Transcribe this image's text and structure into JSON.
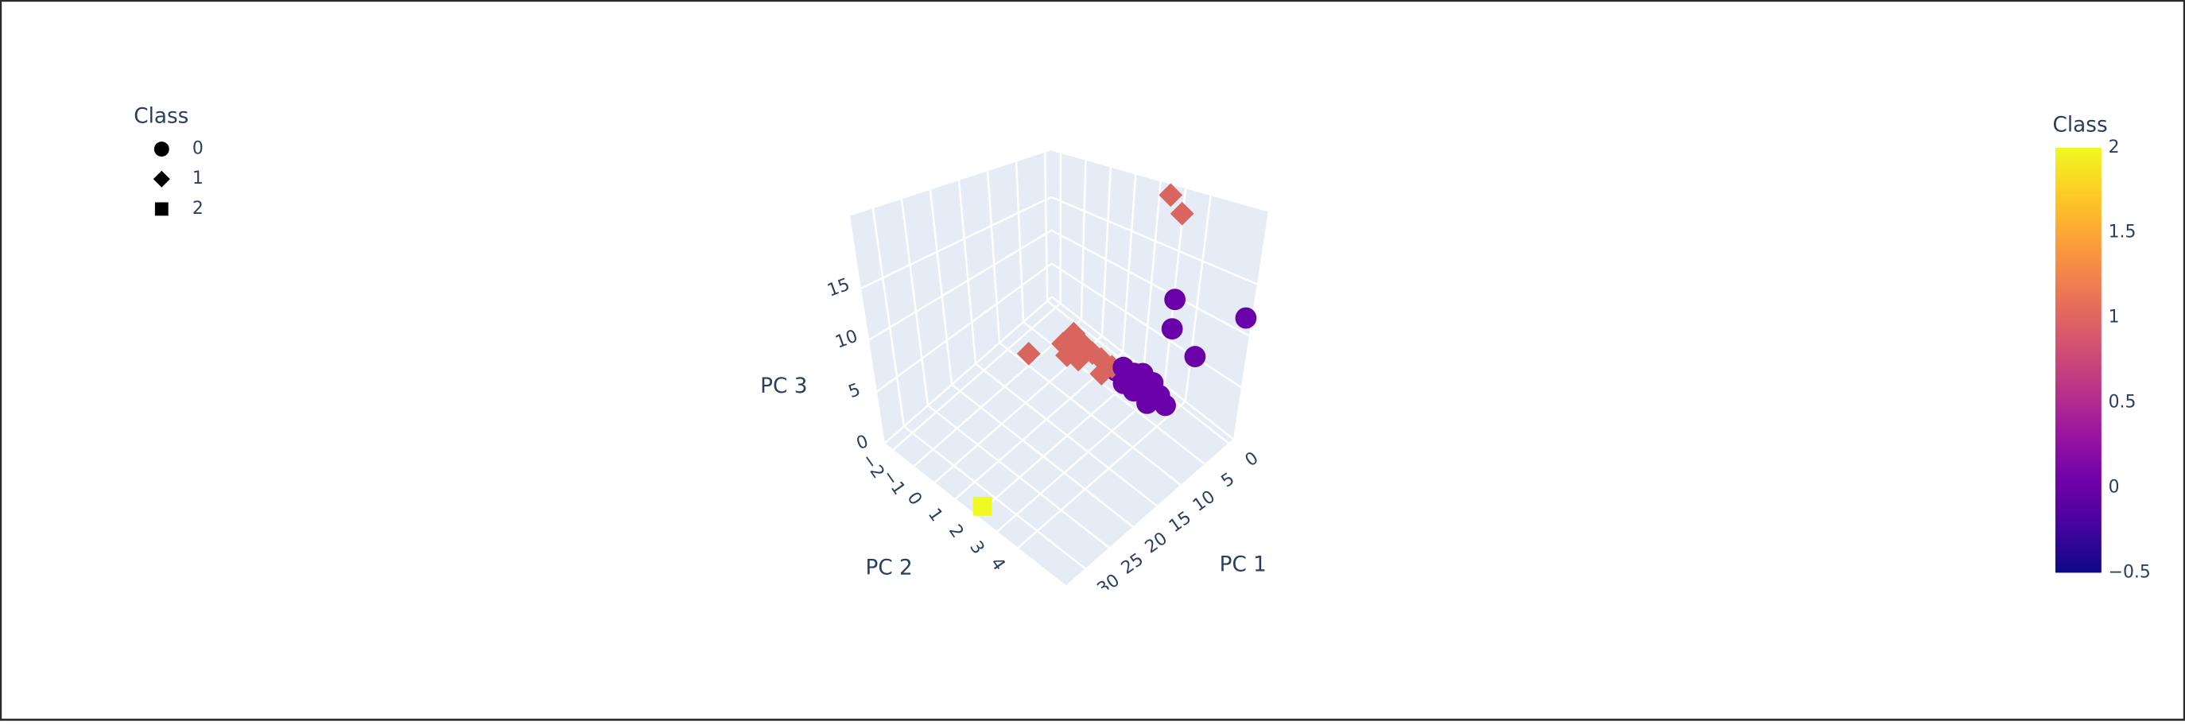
{
  "chart_data": {
    "type": "scatter3d",
    "legend_title": "Class",
    "legend_position": "top-left",
    "xlabel": "PC 1",
    "ylabel": "PC 2",
    "zlabel": "PC 3",
    "xlim": [
      -1,
      34
    ],
    "ylim": [
      -2.4,
      6.3
    ],
    "zlim": [
      0,
      22
    ],
    "xticks": [
      0,
      5,
      10,
      15,
      20,
      25,
      30
    ],
    "yticks": [
      {
        "value": -2,
        "label": "−2"
      },
      {
        "value": -1,
        "label": "−1"
      },
      0,
      1,
      2,
      3,
      4
    ],
    "zticks": [
      0,
      5,
      10,
      15
    ],
    "grid": true,
    "series": [
      {
        "name": "0",
        "symbol": "circle",
        "color": "#6a00a8",
        "x": [
          4.25,
          4.25,
          -0.3,
          3.2,
          4.2,
          4.0,
          4.5,
          5.0,
          3.8,
          3.5,
          4.8,
          3.2,
          4.6,
          3.6,
          5.2,
          4.0
        ],
        "y": [
          4.13,
          4.13,
          6.2,
          5.0,
          3.1,
          2.6,
          2.2,
          2.0,
          3.6,
          4.0,
          2.8,
          3.3,
          3.4,
          2.9,
          2.4,
          3.8
        ],
        "z": [
          12.65,
          9.7,
          11.8,
          7.7,
          2.2,
          2.8,
          3.0,
          2.5,
          1.8,
          1.5,
          1.6,
          2.6,
          1.2,
          3.1,
          1.9,
          2.4
        ]
      },
      {
        "name": "1",
        "symbol": "diamond",
        "color": "#d8665f",
        "x": [
          0.75,
          0.75,
          7.75,
          9.5,
          6.0,
          7.0,
          8.5,
          6.5,
          7.2,
          8.0,
          6.8,
          9.0,
          5.5
        ],
        "y": [
          2.82,
          3.34,
          0.65,
          -1.1,
          1.5,
          0.8,
          0.3,
          1.2,
          1.8,
          0.9,
          0.4,
          0.6,
          1.9
        ],
        "z": [
          21.5,
          19.9,
          3.9,
          1.0,
          3.4,
          4.5,
          4.2,
          3.8,
          2.8,
          3.2,
          4.8,
          3.6,
          3.0
        ]
      },
      {
        "name": "2",
        "symbol": "square",
        "color": "#f0f921",
        "x": [
          32.3
        ],
        "y": [
          1.9
        ],
        "z": [
          0
        ]
      }
    ],
    "colorbar": {
      "title": "Class",
      "lim": [
        -0.5,
        2
      ],
      "ticks": [
        2,
        1.5,
        1,
        0.5,
        0,
        {
          "value": -0.5,
          "label": "−0.5"
        }
      ],
      "colorscale": [
        "#0d0887",
        "#46039f",
        "#7201a8",
        "#9c179e",
        "#bd3786",
        "#d8576b",
        "#ed7953",
        "#fb9f3a",
        "#fdca26",
        "#f0f921"
      ]
    }
  }
}
